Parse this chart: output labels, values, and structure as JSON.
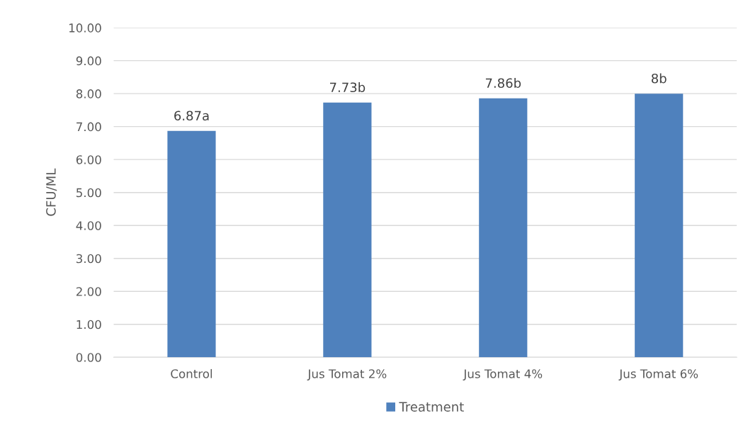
{
  "chart_data": {
    "type": "bar",
    "ylabel": "CFU/ML",
    "categories": [
      "Control",
      "Jus Tomat 2%",
      "Jus Tomat 4%",
      "Jus Tomat 6%"
    ],
    "series": [
      {
        "name": "Treatment",
        "color": "#4f81bd",
        "values": [
          6.87,
          7.73,
          7.86,
          8
        ],
        "value_labels": [
          "6.87a",
          "7.73b",
          "7.86b",
          "8b"
        ]
      }
    ],
    "ylim": [
      0,
      10
    ],
    "yticks": [
      {
        "value": 0,
        "label": "0.00"
      },
      {
        "value": 1,
        "label": "1.00"
      },
      {
        "value": 2,
        "label": "2.00"
      },
      {
        "value": 3,
        "label": "3.00"
      },
      {
        "value": 4,
        "label": "4.00"
      },
      {
        "value": 5,
        "label": "5.00"
      },
      {
        "value": 6,
        "label": "6.00"
      },
      {
        "value": 7,
        "label": "7.00"
      },
      {
        "value": 8,
        "label": "8.00"
      },
      {
        "value": 9,
        "label": "9.00"
      },
      {
        "value": 10,
        "label": "10.00"
      }
    ],
    "grid": "y",
    "legend": "bottom"
  }
}
